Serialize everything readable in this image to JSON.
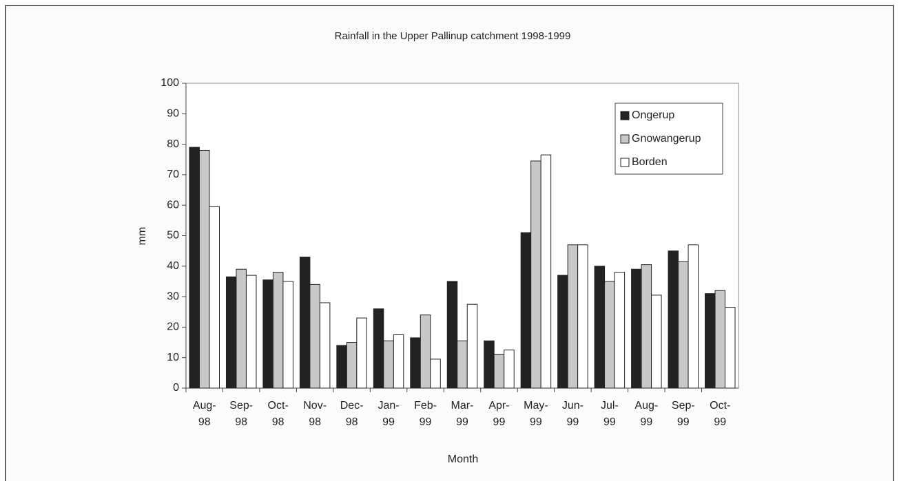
{
  "chart_data": {
    "type": "bar",
    "title": "Rainfall in the Upper Pallinup catchment 1998-1999",
    "x_label": "Month",
    "y_label": "mm",
    "categories": [
      "Aug-\n98",
      "Sep-\n98",
      "Oct-\n98",
      "Nov-\n98",
      "Dec-\n98",
      "Jan-\n99",
      "Feb-\n99",
      "Mar-\n99",
      "Apr-\n99",
      "May-\n99",
      "Jun-\n99",
      "Jul-\n99",
      "Aug-\n99",
      "Sep-\n99",
      "Oct-\n99"
    ],
    "series": [
      {
        "name": "Ongerup",
        "color": "#222222",
        "values": [
          79,
          36.5,
          35.5,
          43,
          14,
          26,
          16.5,
          35,
          15.5,
          51,
          37,
          40,
          39,
          45,
          31
        ]
      },
      {
        "name": "Gnowangerup",
        "color": "#c8c8c8",
        "values": [
          78,
          39,
          38,
          34,
          15,
          15.5,
          24,
          15.5,
          11,
          74.5,
          47,
          35,
          40.5,
          41.5,
          32
        ]
      },
      {
        "name": "Borden",
        "color": "#ffffff",
        "values": [
          59.5,
          37,
          35,
          28,
          23,
          17.5,
          9.5,
          27.5,
          12.5,
          76.5,
          47,
          38,
          30.5,
          47,
          26.5
        ]
      }
    ],
    "ylim": [
      0,
      100
    ],
    "yticks": [
      0,
      10,
      20,
      30,
      40,
      50,
      60,
      70,
      80,
      90,
      100
    ],
    "grid": false,
    "legend": "upper right"
  }
}
